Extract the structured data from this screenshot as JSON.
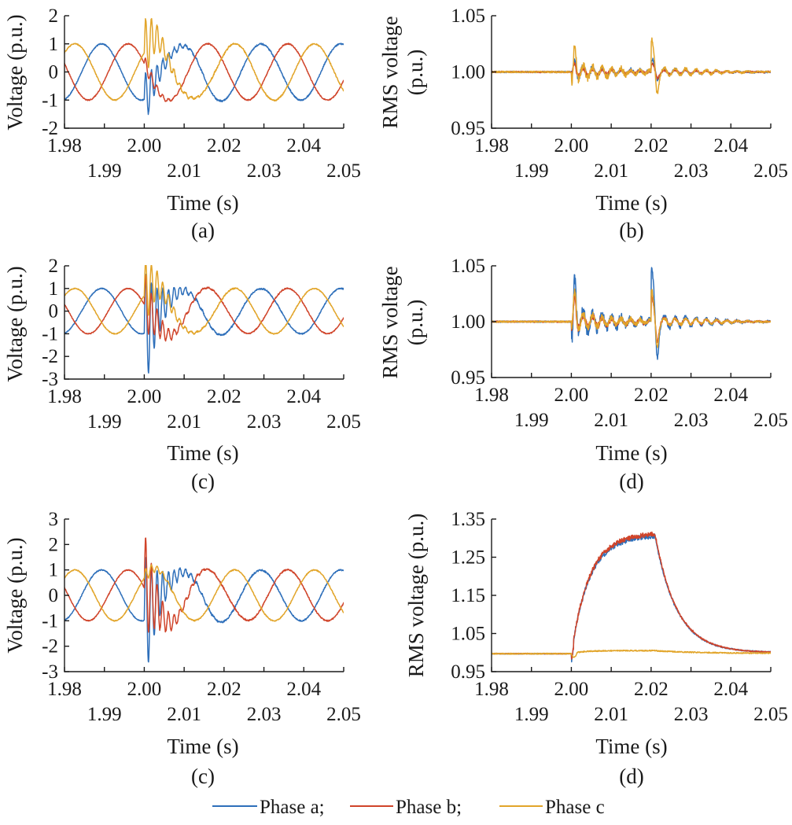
{
  "legend": {
    "items": [
      {
        "label": "Phase a;",
        "color": "#2e6fba"
      },
      {
        "label": "Phase b;",
        "color": "#d0442a"
      },
      {
        "label": "Phase c",
        "color": "#e2a52a"
      }
    ]
  },
  "chart_data": [
    {
      "id": "a",
      "type": "line",
      "caption": "(a)",
      "xlabel": "Time (s)",
      "ylabel": "Voltage (p.u.)",
      "xlim": [
        1.98,
        2.05
      ],
      "ylim": [
        -2,
        2
      ],
      "xticks_top": [
        "1.98",
        "2.00",
        "2.02",
        "2.04"
      ],
      "xticks_bottom": [
        "1.99",
        "2.01",
        "2.03",
        "2.05"
      ],
      "yticks": [
        "2",
        "1",
        "0",
        "-1",
        "-2"
      ],
      "series": [
        {
          "color": "#2e6fba",
          "phase_deg": 0,
          "dist": 0.7,
          "osc": 1.0
        },
        {
          "color": "#d0442a",
          "phase_deg": -120,
          "dist": 0.15,
          "osc": 0.3
        },
        {
          "color": "#e2a52a",
          "phase_deg": 120,
          "dist": 0.85,
          "osc": 1.2
        }
      ]
    },
    {
      "id": "b",
      "type": "line",
      "caption": "(b)",
      "xlabel": "Time (s)",
      "ylabel": [
        "RMS voltage",
        "(p.u.)"
      ],
      "xlim": [
        1.98,
        2.05
      ],
      "ylim": [
        0.95,
        1.05
      ],
      "xticks_top": [
        "1.98",
        "2.00",
        "2.02",
        "2.04"
      ],
      "xticks_bottom": [
        "1.99",
        "2.01",
        "2.03",
        "2.05"
      ],
      "yticks": [
        "1.05",
        "1.00",
        "0.95"
      ],
      "series": [
        {
          "color": "#2e6fba",
          "amp": 0.006,
          "dip": -0.007,
          "spike": 0.006
        },
        {
          "color": "#d0442a",
          "amp": 0.004,
          "dip": -0.004,
          "spike": 0.005
        },
        {
          "color": "#e2a52a",
          "amp": 0.008,
          "dip": -0.019,
          "spike": 0.021
        }
      ]
    },
    {
      "id": "c",
      "type": "line",
      "caption": "(c)",
      "xlabel": "Time (s)",
      "ylabel": "Voltage (p.u.)",
      "xlim": [
        1.98,
        2.05
      ],
      "ylim": [
        -3,
        2
      ],
      "xticks_top": [
        "1.98",
        "2.00",
        "2.02",
        "2.04"
      ],
      "xticks_bottom": [
        "1.99",
        "2.01",
        "2.03",
        "2.05"
      ],
      "yticks": [
        "2",
        "1",
        "0",
        "-1",
        "-2",
        "-3"
      ],
      "series": [
        {
          "color": "#2e6fba",
          "phase_deg": 0,
          "dist": 1.0,
          "osc": 2.8
        },
        {
          "color": "#d0442a",
          "phase_deg": -120,
          "dist": 0.6,
          "osc": 1.5
        },
        {
          "color": "#e2a52a",
          "phase_deg": 120,
          "dist": 0.6,
          "osc": 1.6
        }
      ]
    },
    {
      "id": "d",
      "type": "line",
      "caption": "(d)",
      "xlabel": "Time (s)",
      "ylabel": [
        "RMS voltage",
        "(p.u.)"
      ],
      "xlim": [
        1.98,
        2.05
      ],
      "ylim": [
        0.95,
        1.05
      ],
      "xticks_top": [
        "1.98",
        "2.00",
        "2.02",
        "2.04"
      ],
      "xticks_bottom": [
        "1.99",
        "2.01",
        "2.03",
        "2.05"
      ],
      "yticks": [
        "1.05",
        "1.00",
        "0.95"
      ],
      "series": [
        {
          "color": "#2e6fba",
          "amp": 0.012,
          "dip": -0.03,
          "spike": 0.036
        },
        {
          "color": "#d0442a",
          "amp": 0.007,
          "dip": -0.012,
          "spike": 0.02
        },
        {
          "color": "#e2a52a",
          "amp": 0.008,
          "dip": -0.015,
          "spike": 0.025
        }
      ]
    },
    {
      "id": "e",
      "type": "line",
      "caption": "(c)",
      "xlabel": "Time (s)",
      "ylabel": "Voltage (p.u.)",
      "xlim": [
        1.98,
        2.05
      ],
      "ylim": [
        -3,
        3
      ],
      "xticks_top": [
        "1.98",
        "2.00",
        "2.02",
        "2.04"
      ],
      "xticks_bottom": [
        "1.99",
        "2.01",
        "2.03",
        "2.05"
      ],
      "yticks": [
        "3",
        "2",
        "1",
        "0",
        "-1",
        "-2",
        "-3"
      ],
      "series": [
        {
          "color": "#2e6fba",
          "phase_deg": 0,
          "dist": 1.0,
          "osc": 2.6
        },
        {
          "color": "#d0442a",
          "phase_deg": -120,
          "dist": 0.9,
          "osc": 2.2
        },
        {
          "color": "#e2a52a",
          "phase_deg": 120,
          "dist": 0.2,
          "osc": 0.3
        }
      ]
    },
    {
      "id": "f",
      "type": "line",
      "caption": "(d)",
      "xlabel": "Time (s)",
      "ylabel": "RMS voltage (p.u.)",
      "xlim": [
        1.98,
        2.05
      ],
      "ylim": [
        0.95,
        1.35
      ],
      "xticks_top": [
        "1.98",
        "2.00",
        "2.02",
        "2.04"
      ],
      "xticks_bottom": [
        "1.99",
        "2.01",
        "2.03",
        "2.05"
      ],
      "yticks": [
        "1.35",
        "1.25",
        "1.15",
        "1.05",
        "0.95"
      ],
      "ytick_values": [
        1.35,
        1.25,
        1.15,
        1.05,
        0.95
      ],
      "series": [
        {
          "color": "#2e6fba",
          "kind": "swell",
          "peak": 1.305
        },
        {
          "color": "#d0442a",
          "kind": "swell",
          "peak": 1.31
        },
        {
          "color": "#e2a52a",
          "kind": "flat",
          "peak": 1.005
        }
      ]
    }
  ]
}
